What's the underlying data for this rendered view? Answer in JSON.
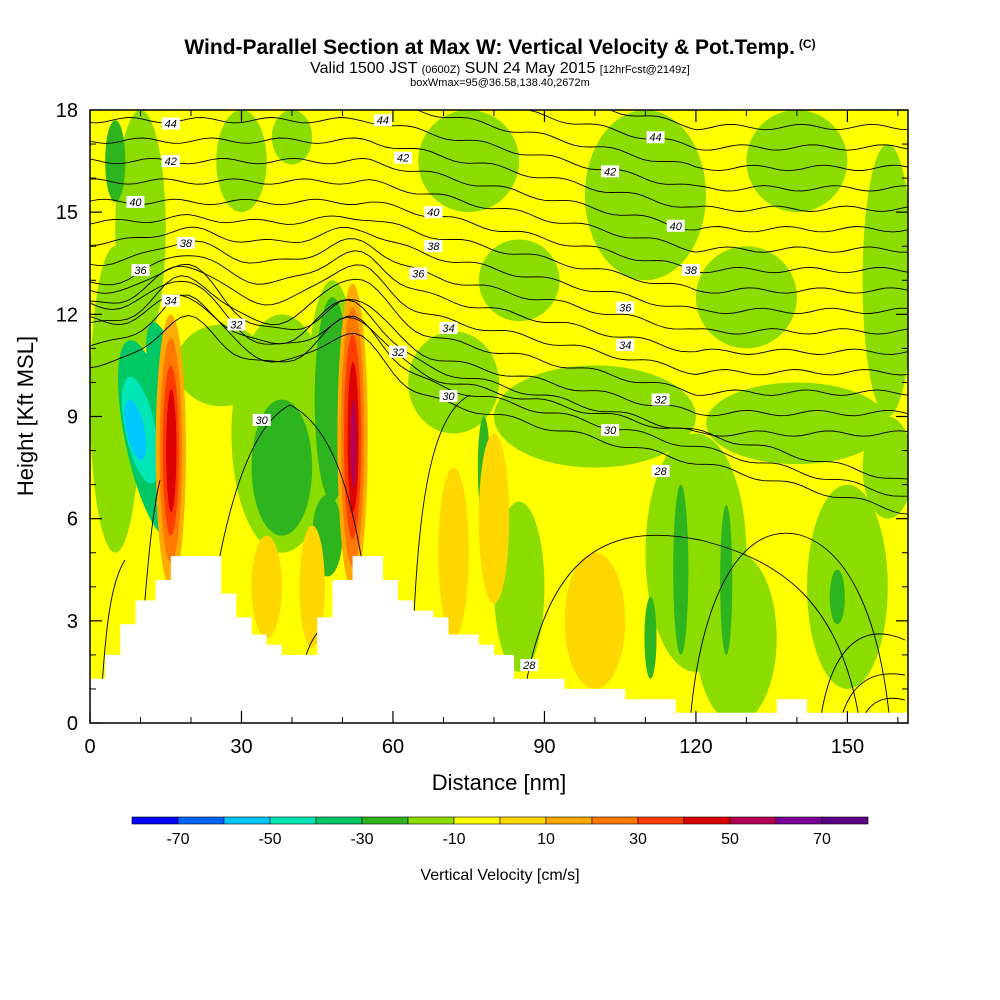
{
  "title": {
    "main": "Wind-Parallel Section at Max W: Vertical Velocity & Pot.Temp.",
    "copyright": "(C)",
    "valid_prefix": "Valid 1500 JST",
    "valid_z": "(0600Z)",
    "valid_date": "SUN 24 May 2015",
    "forecast": "[12hrFcst@2149z]",
    "box_info": "boxWmax=95@36.58,138.40,2672m"
  },
  "chart_data": {
    "type": "heatmap",
    "xlabel": "Distance [nm]",
    "ylabel": "Height [Kft MSL]",
    "xlim": [
      0,
      162
    ],
    "ylim": [
      0,
      18
    ],
    "x_ticks": [
      0,
      30,
      60,
      90,
      120,
      150
    ],
    "y_ticks": [
      0,
      3,
      6,
      9,
      12,
      15,
      18
    ],
    "colorbar": {
      "label": "Vertical Velocity [cm/s]",
      "levels": [
        -80,
        -70,
        -60,
        -50,
        -40,
        -30,
        -20,
        -10,
        0,
        10,
        20,
        30,
        40,
        50,
        60,
        70,
        80
      ],
      "tick_labels": [
        -70,
        -50,
        -30,
        -10,
        10,
        30,
        50,
        70
      ],
      "colors": [
        "#0000ff",
        "#0064ff",
        "#00c8ff",
        "#00e6b4",
        "#00c864",
        "#2db41e",
        "#8cdc00",
        "#ffff00",
        "#ffd700",
        "#ffaa00",
        "#ff7800",
        "#ff3c00",
        "#dc0000",
        "#b40050",
        "#780096",
        "#5a0082"
      ]
    },
    "theta_contours": [
      {
        "value": 44,
        "labels": [
          [
            16,
            17.6
          ],
          [
            58,
            17.7
          ],
          [
            112,
            17.2
          ]
        ]
      },
      {
        "value": 42,
        "labels": [
          [
            16,
            16.5
          ],
          [
            62,
            16.6
          ],
          [
            103,
            16.2
          ]
        ]
      },
      {
        "value": 40,
        "labels": [
          [
            9,
            15.3
          ],
          [
            68,
            15.0
          ],
          [
            116,
            14.6
          ]
        ]
      },
      {
        "value": 38,
        "labels": [
          [
            19,
            14.1
          ],
          [
            68,
            14.0
          ],
          [
            119,
            13.3
          ]
        ]
      },
      {
        "value": 36,
        "labels": [
          [
            10,
            13.3
          ],
          [
            65,
            13.2
          ],
          [
            106,
            12.2
          ]
        ]
      },
      {
        "value": 34,
        "labels": [
          [
            16,
            12.4
          ],
          [
            71,
            11.6
          ],
          [
            106,
            11.1
          ]
        ]
      },
      {
        "value": 32,
        "labels": [
          [
            29,
            11.7
          ],
          [
            61,
            10.9
          ],
          [
            113,
            9.5
          ]
        ]
      },
      {
        "value": 30,
        "labels": [
          [
            34,
            8.9
          ],
          [
            71,
            9.6
          ],
          [
            103,
            8.6
          ]
        ]
      },
      {
        "value": 28,
        "labels": [
          [
            113,
            7.4
          ],
          [
            87,
            1.7
          ]
        ]
      }
    ],
    "terrain": [
      [
        0,
        1.3
      ],
      [
        3,
        1.3
      ],
      [
        3,
        2.0
      ],
      [
        6,
        2.0
      ],
      [
        6,
        2.9
      ],
      [
        9,
        2.9
      ],
      [
        9,
        3.6
      ],
      [
        13,
        3.6
      ],
      [
        13,
        4.2
      ],
      [
        16,
        4.2
      ],
      [
        16,
        4.9
      ],
      [
        26,
        4.9
      ],
      [
        26,
        3.8
      ],
      [
        29,
        3.8
      ],
      [
        29,
        3.1
      ],
      [
        32,
        3.1
      ],
      [
        32,
        2.6
      ],
      [
        35,
        2.6
      ],
      [
        35,
        2.3
      ],
      [
        38,
        2.3
      ],
      [
        38,
        2.0
      ],
      [
        45,
        2.0
      ],
      [
        45,
        3.1
      ],
      [
        48,
        3.1
      ],
      [
        48,
        4.2
      ],
      [
        52,
        4.2
      ],
      [
        52,
        4.9
      ],
      [
        58,
        4.9
      ],
      [
        58,
        4.2
      ],
      [
        61,
        4.2
      ],
      [
        61,
        3.6
      ],
      [
        64,
        3.6
      ],
      [
        64,
        3.3
      ],
      [
        68,
        3.3
      ],
      [
        68,
        3.1
      ],
      [
        71,
        3.1
      ],
      [
        71,
        2.6
      ],
      [
        77,
        2.6
      ],
      [
        77,
        2.3
      ],
      [
        80,
        2.3
      ],
      [
        80,
        2.0
      ],
      [
        84,
        2.0
      ],
      [
        84,
        1.3
      ],
      [
        94,
        1.3
      ],
      [
        94,
        1.0
      ],
      [
        106,
        1.0
      ],
      [
        106,
        0.7
      ],
      [
        116,
        0.7
      ],
      [
        116,
        0.3
      ],
      [
        136,
        0.3
      ],
      [
        136,
        0.7
      ],
      [
        142,
        0.7
      ],
      [
        142,
        0.3
      ],
      [
        162,
        0.3
      ]
    ]
  }
}
